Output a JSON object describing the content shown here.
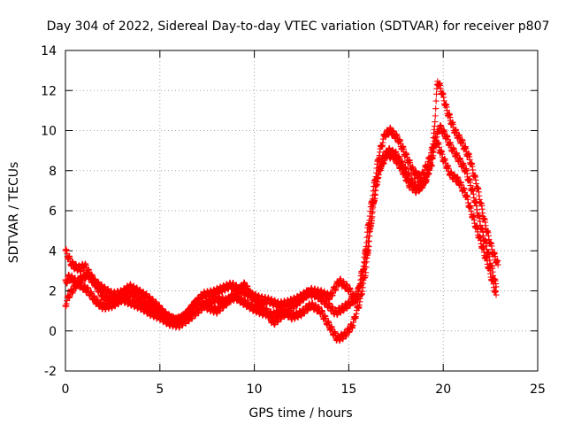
{
  "chart_data": {
    "type": "scatter",
    "title": "Day 304 of 2022, Sidereal Day-to-day VTEC variation (SDTVAR) for receiver p807",
    "xlabel": "GPS time / hours",
    "ylabel": "SDTVAR / TECUs",
    "xlim": [
      0,
      25
    ],
    "ylim": [
      -2,
      14
    ],
    "xticks": [
      0,
      5,
      10,
      15,
      20,
      25
    ],
    "yticks": [
      -2,
      0,
      2,
      4,
      6,
      8,
      10,
      12,
      14
    ],
    "grid": true,
    "marker": "+",
    "color": "#ff0000",
    "series": [
      {
        "values": [
          [
            0.0,
            4.0
          ],
          [
            0.1,
            3.8
          ],
          [
            0.3,
            3.4
          ],
          [
            0.5,
            3.2
          ],
          [
            0.8,
            3.1
          ],
          [
            1.0,
            3.3
          ],
          [
            1.3,
            2.8
          ],
          [
            1.6,
            2.4
          ],
          [
            2.0,
            2.1
          ],
          [
            2.5,
            1.8
          ],
          [
            3.0,
            1.9
          ],
          [
            3.4,
            2.2
          ],
          [
            3.8,
            2.0
          ],
          [
            4.3,
            1.7
          ],
          [
            4.8,
            1.3
          ],
          [
            5.3,
            0.8
          ],
          [
            5.8,
            0.5
          ],
          [
            6.3,
            0.7
          ],
          [
            6.8,
            1.3
          ],
          [
            7.3,
            1.8
          ],
          [
            7.8,
            1.9
          ],
          [
            8.3,
            2.1
          ],
          [
            8.8,
            2.3
          ],
          [
            9.3,
            2.0
          ],
          [
            9.8,
            1.8
          ],
          [
            10.3,
            1.6
          ],
          [
            10.8,
            1.5
          ],
          [
            11.3,
            1.3
          ],
          [
            11.8,
            1.4
          ],
          [
            12.3,
            1.6
          ],
          [
            12.8,
            1.9
          ],
          [
            13.3,
            1.8
          ],
          [
            13.8,
            1.4
          ],
          [
            14.3,
            0.9
          ],
          [
            14.8,
            1.2
          ],
          [
            15.2,
            1.5
          ],
          [
            15.5,
            2.0
          ],
          [
            15.8,
            3.4
          ],
          [
            16.0,
            5.0
          ],
          [
            16.3,
            7.0
          ],
          [
            16.6,
            8.8
          ],
          [
            16.9,
            9.8
          ],
          [
            17.2,
            10.0
          ],
          [
            17.6,
            9.6
          ],
          [
            18.0,
            8.8
          ],
          [
            18.4,
            8.0
          ],
          [
            18.8,
            7.6
          ],
          [
            19.2,
            8.4
          ],
          [
            19.6,
            9.6
          ],
          [
            20.0,
            8.6
          ],
          [
            20.4,
            7.8
          ],
          [
            20.8,
            7.5
          ],
          [
            21.2,
            6.8
          ],
          [
            21.6,
            5.6
          ],
          [
            22.0,
            4.4
          ],
          [
            22.4,
            3.2
          ],
          [
            22.8,
            1.8
          ]
        ]
      },
      {
        "values": [
          [
            0.0,
            2.4
          ],
          [
            0.2,
            2.7
          ],
          [
            0.5,
            2.5
          ],
          [
            0.8,
            2.3
          ],
          [
            1.2,
            2.0
          ],
          [
            1.6,
            1.5
          ],
          [
            2.0,
            1.2
          ],
          [
            2.5,
            1.3
          ],
          [
            3.0,
            1.6
          ],
          [
            3.5,
            1.4
          ],
          [
            4.0,
            1.2
          ],
          [
            4.5,
            0.9
          ],
          [
            5.0,
            0.7
          ],
          [
            5.5,
            0.4
          ],
          [
            6.0,
            0.3
          ],
          [
            6.5,
            0.6
          ],
          [
            7.0,
            1.0
          ],
          [
            7.5,
            1.4
          ],
          [
            8.0,
            1.6
          ],
          [
            8.5,
            1.5
          ],
          [
            9.0,
            1.7
          ],
          [
            9.5,
            1.4
          ],
          [
            10.0,
            1.1
          ],
          [
            10.5,
            0.9
          ],
          [
            11.0,
            0.8
          ],
          [
            11.5,
            1.0
          ],
          [
            12.0,
            0.7
          ],
          [
            12.5,
            0.9
          ],
          [
            13.0,
            1.3
          ],
          [
            13.5,
            1.0
          ],
          [
            14.0,
            0.2
          ],
          [
            14.4,
            -0.4
          ],
          [
            14.8,
            -0.2
          ],
          [
            15.2,
            0.3
          ],
          [
            15.6,
            1.5
          ],
          [
            15.9,
            3.0
          ],
          [
            16.2,
            5.5
          ],
          [
            16.5,
            7.6
          ],
          [
            16.8,
            8.6
          ],
          [
            17.1,
            9.0
          ],
          [
            17.5,
            8.8
          ],
          [
            17.9,
            8.2
          ],
          [
            18.3,
            7.5
          ],
          [
            18.7,
            7.1
          ],
          [
            19.1,
            7.6
          ],
          [
            19.5,
            9.0
          ],
          [
            19.8,
            10.2
          ],
          [
            20.1,
            9.8
          ],
          [
            20.4,
            9.2
          ],
          [
            20.8,
            8.6
          ],
          [
            21.2,
            8.0
          ],
          [
            21.6,
            6.8
          ],
          [
            22.0,
            5.2
          ],
          [
            22.4,
            3.8
          ],
          [
            22.8,
            2.2
          ]
        ]
      },
      {
        "values": [
          [
            0.0,
            1.3
          ],
          [
            0.2,
            1.8
          ],
          [
            0.5,
            2.2
          ],
          [
            0.8,
            2.6
          ],
          [
            1.2,
            2.8
          ],
          [
            1.6,
            2.3
          ],
          [
            2.0,
            1.7
          ],
          [
            2.5,
            1.5
          ],
          [
            3.0,
            1.8
          ],
          [
            3.5,
            1.9
          ],
          [
            4.0,
            1.5
          ],
          [
            4.5,
            1.2
          ],
          [
            5.0,
            1.0
          ],
          [
            5.5,
            0.6
          ],
          [
            6.0,
            0.5
          ],
          [
            6.5,
            0.9
          ],
          [
            7.0,
            1.5
          ],
          [
            7.5,
            1.2
          ],
          [
            8.0,
            1.0
          ],
          [
            8.5,
            1.4
          ],
          [
            9.0,
            1.9
          ],
          [
            9.5,
            2.3
          ],
          [
            10.0,
            1.5
          ],
          [
            10.5,
            1.2
          ],
          [
            11.0,
            0.4
          ],
          [
            11.5,
            0.8
          ],
          [
            12.0,
            1.2
          ],
          [
            12.5,
            1.6
          ],
          [
            13.0,
            2.0
          ],
          [
            13.5,
            1.9
          ],
          [
            14.0,
            1.7
          ],
          [
            14.5,
            2.5
          ],
          [
            15.0,
            2.1
          ],
          [
            15.4,
            1.4
          ],
          [
            15.7,
            2.6
          ],
          [
            16.0,
            4.2
          ],
          [
            16.3,
            6.4
          ],
          [
            16.6,
            8.0
          ],
          [
            17.0,
            8.8
          ],
          [
            17.4,
            8.7
          ],
          [
            17.8,
            8.1
          ],
          [
            18.2,
            7.3
          ],
          [
            18.6,
            7.0
          ],
          [
            19.0,
            7.4
          ],
          [
            19.4,
            8.4
          ],
          [
            19.7,
            12.5
          ],
          [
            19.9,
            12.0
          ],
          [
            20.2,
            11.0
          ],
          [
            20.6,
            10.0
          ],
          [
            21.0,
            9.4
          ],
          [
            21.4,
            8.6
          ],
          [
            21.8,
            7.2
          ],
          [
            22.2,
            5.4
          ],
          [
            22.6,
            4.0
          ],
          [
            22.9,
            3.3
          ]
        ]
      }
    ]
  }
}
